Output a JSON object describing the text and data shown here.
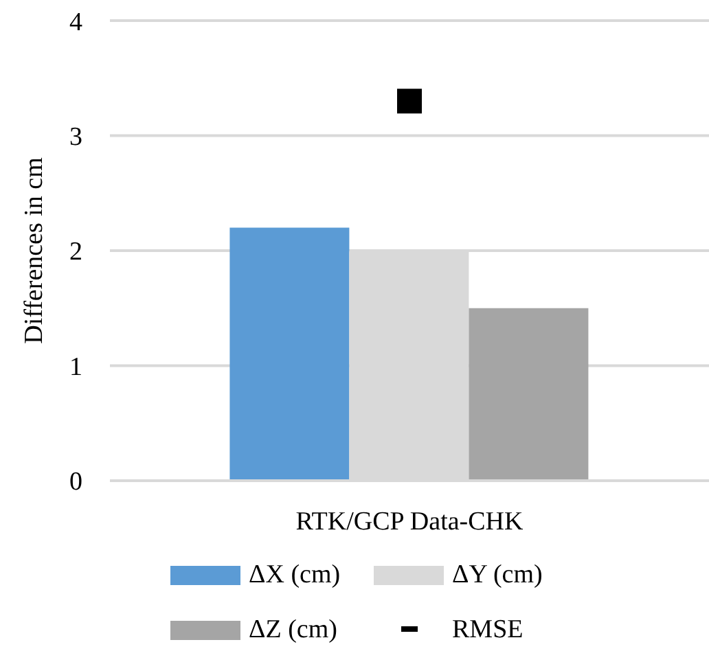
{
  "chart_data": {
    "type": "bar",
    "ylabel": "Differences in cm",
    "categories": [
      "RTK/GCP Data-CHK"
    ],
    "series": [
      {
        "name": "ΔX (cm)",
        "color": "#5b9bd5",
        "values": [
          2.2
        ]
      },
      {
        "name": "ΔY (cm)",
        "color": "#d9d9d9",
        "values": [
          2.0
        ]
      },
      {
        "name": "ΔZ (cm)",
        "color": "#a5a5a5",
        "values": [
          1.5
        ]
      },
      {
        "name": "RMSE",
        "type": "scatter",
        "marker": "square",
        "color": "#000000",
        "values": [
          3.3
        ]
      }
    ],
    "ylim": [
      0,
      4
    ],
    "yticks": [
      0,
      1,
      2,
      3,
      4
    ],
    "grid": "y",
    "legend": "bottom"
  }
}
